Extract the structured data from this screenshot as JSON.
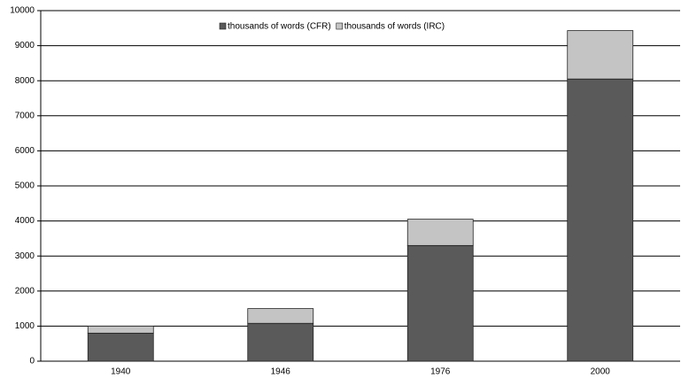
{
  "chart_data": {
    "type": "stacked_bar",
    "categories": [
      "1940",
      "1946",
      "1976",
      "2000"
    ],
    "series": [
      {
        "name": "thousands of words (CFR)",
        "color": "#5a5a5a",
        "values": [
          800,
          1080,
          3300,
          8050
        ]
      },
      {
        "name": "thousands of words (IRC)",
        "color": "#c4c4c4",
        "values": [
          200,
          420,
          750,
          1380
        ]
      }
    ],
    "ylim": [
      0,
      10000
    ],
    "yticks": [
      0,
      1000,
      2000,
      3000,
      4000,
      5000,
      6000,
      7000,
      8000,
      9000,
      10000
    ],
    "grid": true,
    "legend": "top"
  }
}
